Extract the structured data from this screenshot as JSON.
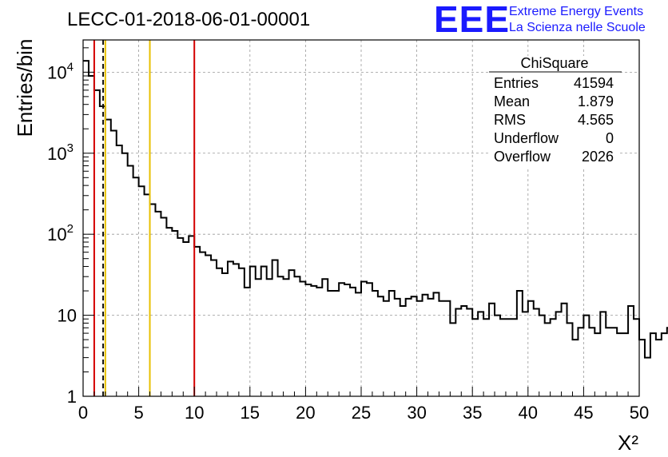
{
  "title": "LECC-01-2018-06-01-00001",
  "logo": {
    "letters": "EEE",
    "line1": "Extreme Energy Events",
    "line2": "La Scienza nelle Scuole"
  },
  "stats_box": {
    "header": "ChiSquare",
    "rows": [
      {
        "label": "Entries",
        "value": "41594"
      },
      {
        "label": "Mean",
        "value": "1.879"
      },
      {
        "label": "RMS",
        "value": "4.565"
      },
      {
        "label": "Underflow",
        "value": "0"
      },
      {
        "label": "Overflow",
        "value": "2026"
      }
    ]
  },
  "chart_data": {
    "type": "bar",
    "histogram": true,
    "title": "LECC-01-2018-06-01-00001",
    "xlabel": "X²",
    "ylabel": "Entries/bin",
    "xlim": [
      0,
      50
    ],
    "ylim": [
      1,
      25000
    ],
    "y_scale": "log",
    "grid": true,
    "bin_width": 0.5,
    "x_ticks": [
      "0",
      "5",
      "10",
      "15",
      "20",
      "25",
      "30",
      "35",
      "40",
      "45",
      "50"
    ],
    "y_ticks": [
      {
        "value": 1,
        "label": "1"
      },
      {
        "value": 10,
        "label": "10"
      },
      {
        "value": 100,
        "label": "10",
        "exp": "2"
      },
      {
        "value": 1000,
        "label": "10",
        "exp": "3"
      },
      {
        "value": 10000,
        "label": "10",
        "exp": "4"
      }
    ],
    "values": [
      13800,
      9000,
      6000,
      3800,
      2600,
      1900,
      1250,
      1000,
      700,
      500,
      390,
      310,
      235,
      190,
      160,
      120,
      110,
      90,
      80,
      95,
      70,
      60,
      55,
      48,
      38,
      33,
      46,
      43,
      38,
      22,
      40,
      28,
      40,
      28,
      48,
      30,
      28,
      36,
      30,
      26,
      24,
      23,
      22,
      28,
      20,
      20,
      25,
      24,
      22,
      19,
      26,
      25,
      20,
      17,
      15,
      20,
      16,
      13,
      16,
      17,
      15,
      18,
      16,
      19,
      15,
      15,
      8,
      12,
      13,
      12,
      9,
      11,
      9,
      14,
      10,
      9,
      9,
      9,
      20,
      11,
      15,
      12,
      10,
      8,
      9,
      11,
      14,
      8,
      5,
      7,
      10,
      7,
      6,
      11,
      7,
      7,
      6,
      6,
      13,
      9,
      5,
      3,
      6,
      5,
      6,
      7,
      4,
      2,
      5,
      7,
      11,
      12,
      13,
      5,
      3,
      6,
      12,
      3,
      7,
      12,
      4,
      3,
      8,
      8,
      6,
      5,
      6,
      8
    ],
    "vertical_lines": [
      {
        "x": 1,
        "color": "#d40000",
        "style": "solid"
      },
      {
        "x": 1.8,
        "color": "#111111",
        "style": "dashed"
      },
      {
        "x": 2,
        "color": "#e8c000",
        "style": "solid"
      },
      {
        "x": 6,
        "color": "#e8c000",
        "style": "solid"
      },
      {
        "x": 10,
        "color": "#d40000",
        "style": "solid"
      }
    ],
    "colors": {
      "histogram": "#000000",
      "grid": "#999999",
      "axis": "#000000"
    }
  }
}
